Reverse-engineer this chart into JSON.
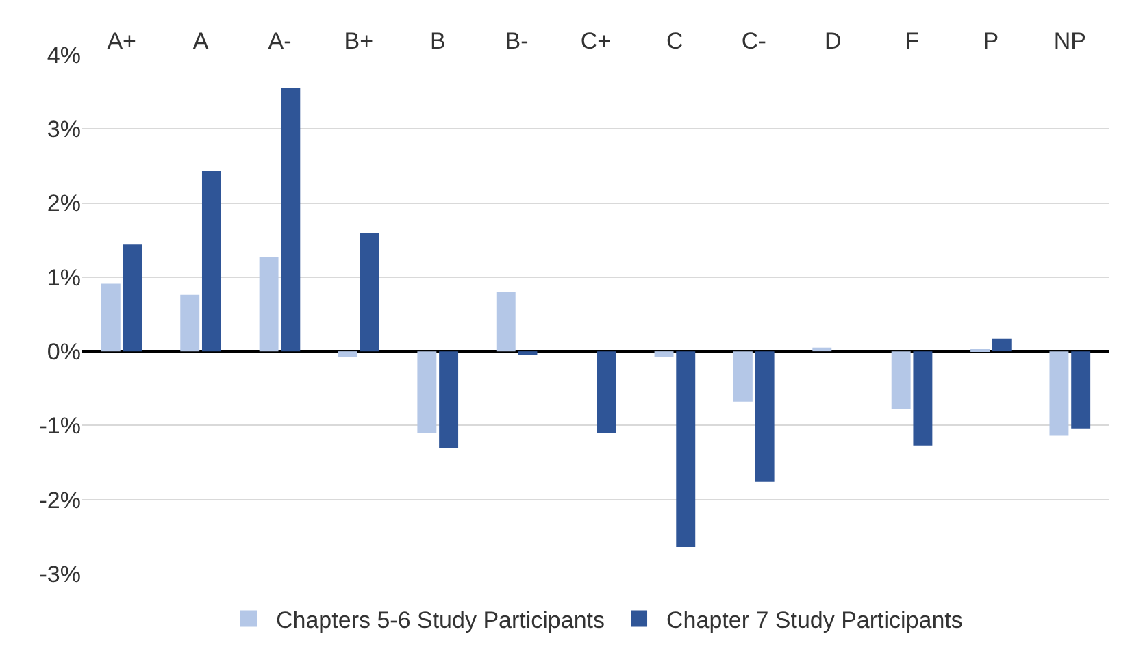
{
  "chart_data": {
    "type": "bar",
    "categories": [
      "A+",
      "A",
      "A-",
      "B+",
      "B",
      "B-",
      "C+",
      "C",
      "C-",
      "D",
      "F",
      "P",
      "NP"
    ],
    "series": [
      {
        "name": "Chapters 5-6 Study Participants",
        "color": "#b4c7e7",
        "values": [
          0.91,
          0.76,
          1.27,
          -0.08,
          -1.1,
          0.8,
          0,
          -0.08,
          -0.68,
          0.05,
          -0.78,
          0.02,
          -1.14
        ]
      },
      {
        "name": "Chapter 7 Study Participants",
        "color": "#2f5597",
        "values": [
          1.44,
          2.43,
          3.55,
          1.59,
          -1.31,
          -0.05,
          -1.1,
          -2.64,
          -1.76,
          0,
          -1.27,
          0.17,
          -1.04
        ]
      }
    ],
    "ylim": [
      -3,
      4
    ],
    "yticks": [
      {
        "value": -3,
        "label": "-3%"
      },
      {
        "value": -2,
        "label": "-2%"
      },
      {
        "value": -1,
        "label": "-1%"
      },
      {
        "value": 0,
        "label": "0%"
      },
      {
        "value": 1,
        "label": "1%"
      },
      {
        "value": 2,
        "label": "2%"
      },
      {
        "value": 3,
        "label": "3%"
      },
      {
        "value": 4,
        "label": "4%"
      }
    ],
    "grid": "y",
    "legend": "bottom"
  }
}
